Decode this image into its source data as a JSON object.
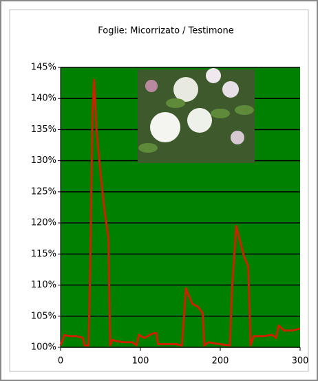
{
  "chart_data": {
    "type": "line",
    "title": "Foglie: Micorrizato / Testimone",
    "x": [
      0,
      5,
      10,
      20,
      28,
      30,
      35,
      37,
      40,
      42,
      45,
      50,
      55,
      60,
      62,
      65,
      70,
      80,
      90,
      95,
      98,
      105,
      115,
      120,
      122,
      130,
      145,
      152,
      157,
      160,
      165,
      172,
      178,
      180,
      185,
      200,
      212,
      215,
      220,
      225,
      230,
      235,
      238,
      242,
      255,
      265,
      270,
      273,
      280,
      290,
      300
    ],
    "values": [
      100.3,
      102,
      101.8,
      101.8,
      101.5,
      100.3,
      100.3,
      112,
      138,
      143,
      135,
      128,
      122,
      117.5,
      100.3,
      101.2,
      101,
      100.8,
      100.8,
      100.3,
      102,
      101.5,
      102.2,
      102.3,
      100.5,
      100.5,
      100.5,
      100.3,
      109.5,
      108.5,
      107,
      106.5,
      105.5,
      100.3,
      100.8,
      100.5,
      100.3,
      110,
      119.5,
      117,
      114.5,
      113,
      100.3,
      101.8,
      101.8,
      102,
      101.5,
      103.5,
      102.7,
      102.7,
      103
    ],
    "color": "#cc2200",
    "plot_background": "#008000",
    "xlim": [
      0,
      300
    ],
    "xticks": [
      0,
      100,
      200,
      300
    ],
    "ylim": [
      100,
      145
    ],
    "yticks": [
      {
        "value": 100,
        "label": "100%"
      },
      {
        "value": 105,
        "label": "105%"
      },
      {
        "value": 110,
        "label": "110%"
      },
      {
        "value": 115,
        "label": "115%"
      },
      {
        "value": 120,
        "label": "120%"
      },
      {
        "value": 125,
        "label": "125%"
      },
      {
        "value": 130,
        "label": "130%"
      },
      {
        "value": 135,
        "label": "135%"
      },
      {
        "value": 140,
        "label": "140%"
      },
      {
        "value": 145,
        "label": "145%"
      }
    ],
    "grid": true
  }
}
